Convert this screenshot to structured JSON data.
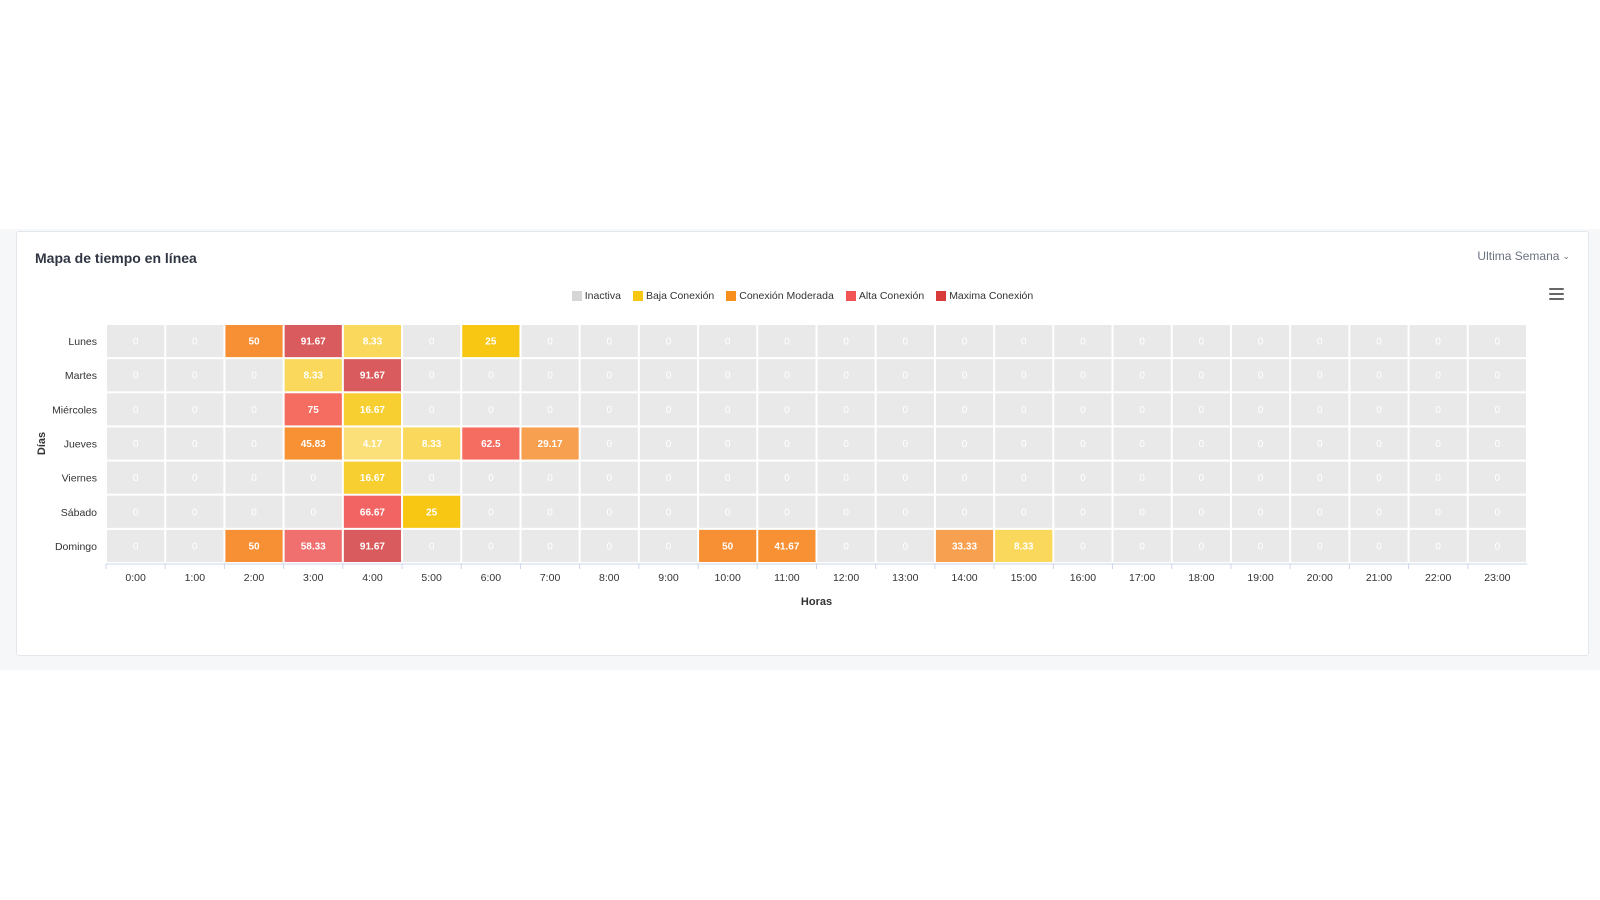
{
  "card": {
    "title": "Mapa de tiempo en línea",
    "period_label": "Ultima Semana"
  },
  "chart_data": {
    "type": "heatmap",
    "title": "",
    "xlabel": "Horas",
    "ylabel": "Días",
    "x_categories": [
      "0:00",
      "1:00",
      "2:00",
      "3:00",
      "4:00",
      "5:00",
      "6:00",
      "7:00",
      "8:00",
      "9:00",
      "10:00",
      "11:00",
      "12:00",
      "13:00",
      "14:00",
      "15:00",
      "16:00",
      "17:00",
      "18:00",
      "19:00",
      "20:00",
      "21:00",
      "22:00",
      "23:00"
    ],
    "y_categories": [
      "Lunes",
      "Martes",
      "Miércoles",
      "Jueves",
      "Viernes",
      "Sábado",
      "Domingo"
    ],
    "values": [
      [
        0,
        0,
        50,
        91.67,
        8.33,
        0,
        25,
        0,
        0,
        0,
        0,
        0,
        0,
        0,
        0,
        0,
        0,
        0,
        0,
        0,
        0,
        0,
        0,
        0
      ],
      [
        0,
        0,
        0,
        8.33,
        91.67,
        0,
        0,
        0,
        0,
        0,
        0,
        0,
        0,
        0,
        0,
        0,
        0,
        0,
        0,
        0,
        0,
        0,
        0,
        0
      ],
      [
        0,
        0,
        0,
        75,
        16.67,
        0,
        0,
        0,
        0,
        0,
        0,
        0,
        0,
        0,
        0,
        0,
        0,
        0,
        0,
        0,
        0,
        0,
        0,
        0
      ],
      [
        0,
        0,
        0,
        45.83,
        4.17,
        8.33,
        62.5,
        29.17,
        0,
        0,
        0,
        0,
        0,
        0,
        0,
        0,
        0,
        0,
        0,
        0,
        0,
        0,
        0,
        0
      ],
      [
        0,
        0,
        0,
        0,
        16.67,
        0,
        0,
        0,
        0,
        0,
        0,
        0,
        0,
        0,
        0,
        0,
        0,
        0,
        0,
        0,
        0,
        0,
        0,
        0
      ],
      [
        0,
        0,
        0,
        0,
        66.67,
        25,
        0,
        0,
        0,
        0,
        0,
        0,
        0,
        0,
        0,
        0,
        0,
        0,
        0,
        0,
        0,
        0,
        0,
        0
      ],
      [
        0,
        0,
        50,
        58.33,
        91.67,
        0,
        0,
        0,
        0,
        0,
        50,
        41.67,
        0,
        0,
        33.33,
        8.33,
        0,
        0,
        0,
        0,
        0,
        0,
        0,
        0
      ]
    ],
    "cell_colors": [
      [
        "#e9e9e9",
        "#e9e9e9",
        "#f78f34",
        "#da5b5d",
        "#fad85c",
        "#e9e9e9",
        "#f7c714",
        "#e9e9e9",
        "#e9e9e9",
        "#e9e9e9",
        "#e9e9e9",
        "#e9e9e9",
        "#e9e9e9",
        "#e9e9e9",
        "#e9e9e9",
        "#e9e9e9",
        "#e9e9e9",
        "#e9e9e9",
        "#e9e9e9",
        "#e9e9e9",
        "#e9e9e9",
        "#e9e9e9",
        "#e9e9e9",
        "#e9e9e9"
      ],
      [
        "#e9e9e9",
        "#e9e9e9",
        "#e9e9e9",
        "#fad85c",
        "#da5b5d",
        "#e9e9e9",
        "#e9e9e9",
        "#e9e9e9",
        "#e9e9e9",
        "#e9e9e9",
        "#e9e9e9",
        "#e9e9e9",
        "#e9e9e9",
        "#e9e9e9",
        "#e9e9e9",
        "#e9e9e9",
        "#e9e9e9",
        "#e9e9e9",
        "#e9e9e9",
        "#e9e9e9",
        "#e9e9e9",
        "#e9e9e9",
        "#e9e9e9",
        "#e9e9e9"
      ],
      [
        "#e9e9e9",
        "#e9e9e9",
        "#e9e9e9",
        "#f56c61",
        "#f7cf30",
        "#e9e9e9",
        "#e9e9e9",
        "#e9e9e9",
        "#e9e9e9",
        "#e9e9e9",
        "#e9e9e9",
        "#e9e9e9",
        "#e9e9e9",
        "#e9e9e9",
        "#e9e9e9",
        "#e9e9e9",
        "#e9e9e9",
        "#e9e9e9",
        "#e9e9e9",
        "#e9e9e9",
        "#e9e9e9",
        "#e9e9e9",
        "#e9e9e9",
        "#e9e9e9"
      ],
      [
        "#e9e9e9",
        "#e9e9e9",
        "#e9e9e9",
        "#f79134",
        "#fbe07a",
        "#fad85c",
        "#f56c61",
        "#f7a050",
        "#e9e9e9",
        "#e9e9e9",
        "#e9e9e9",
        "#e9e9e9",
        "#e9e9e9",
        "#e9e9e9",
        "#e9e9e9",
        "#e9e9e9",
        "#e9e9e9",
        "#e9e9e9",
        "#e9e9e9",
        "#e9e9e9",
        "#e9e9e9",
        "#e9e9e9",
        "#e9e9e9",
        "#e9e9e9"
      ],
      [
        "#e9e9e9",
        "#e9e9e9",
        "#e9e9e9",
        "#e9e9e9",
        "#f7cf30",
        "#e9e9e9",
        "#e9e9e9",
        "#e9e9e9",
        "#e9e9e9",
        "#e9e9e9",
        "#e9e9e9",
        "#e9e9e9",
        "#e9e9e9",
        "#e9e9e9",
        "#e9e9e9",
        "#e9e9e9",
        "#e9e9e9",
        "#e9e9e9",
        "#e9e9e9",
        "#e9e9e9",
        "#e9e9e9",
        "#e9e9e9",
        "#e9e9e9",
        "#e9e9e9"
      ],
      [
        "#e9e9e9",
        "#e9e9e9",
        "#e9e9e9",
        "#e9e9e9",
        "#f26464",
        "#f7c714",
        "#e9e9e9",
        "#e9e9e9",
        "#e9e9e9",
        "#e9e9e9",
        "#e9e9e9",
        "#e9e9e9",
        "#e9e9e9",
        "#e9e9e9",
        "#e9e9e9",
        "#e9e9e9",
        "#e9e9e9",
        "#e9e9e9",
        "#e9e9e9",
        "#e9e9e9",
        "#e9e9e9",
        "#e9e9e9",
        "#e9e9e9",
        "#e9e9e9"
      ],
      [
        "#e9e9e9",
        "#e9e9e9",
        "#f78f34",
        "#f07070",
        "#da5b5d",
        "#e9e9e9",
        "#e9e9e9",
        "#e9e9e9",
        "#e9e9e9",
        "#e9e9e9",
        "#f78f34",
        "#f79134",
        "#e9e9e9",
        "#e9e9e9",
        "#f7a050",
        "#fad85c",
        "#e9e9e9",
        "#e9e9e9",
        "#e9e9e9",
        "#e9e9e9",
        "#e9e9e9",
        "#e9e9e9",
        "#e9e9e9",
        "#e9e9e9"
      ]
    ],
    "legend": [
      {
        "name": "Inactiva",
        "color": "#d6d6d6"
      },
      {
        "name": "Baja Conexión",
        "color": "#f7c714"
      },
      {
        "name": "Conexión Moderada",
        "color": "#f78f1e"
      },
      {
        "name": "Alta Conexión",
        "color": "#f05454"
      },
      {
        "name": "Maxima Conexión",
        "color": "#d93a3a"
      }
    ],
    "legend_position": "top-center",
    "grid": false
  }
}
